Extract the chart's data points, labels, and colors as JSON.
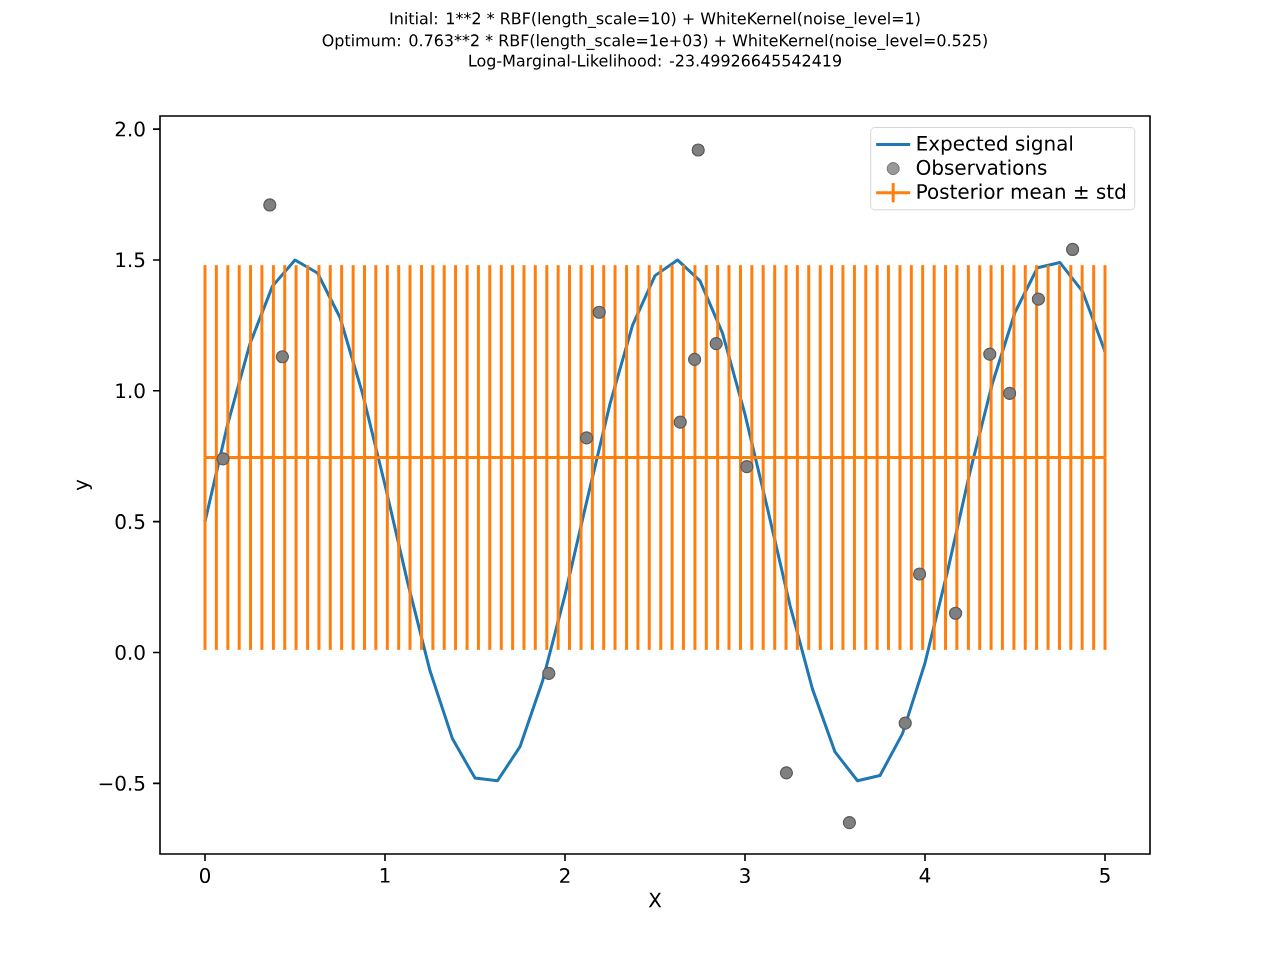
{
  "chart_data": {
    "type": "line",
    "title": "Initial: 1**2 * RBF(length_scale=10) + WhiteKernel(noise_level=1)",
    "subtitle": "Optimum: 0.763**2 * RBF(length_scale=1e+03) + WhiteKernel(noise_level=0.525)",
    "annotations": [
      "Log-Marginal-Likelihood: -23.49926645542419"
    ],
    "xlabel": "X",
    "ylabel": "y",
    "xlim": [
      -0.25,
      5.25
    ],
    "ylim": [
      -0.77,
      2.05
    ],
    "xticks": [
      0,
      1,
      2,
      3,
      4,
      5
    ],
    "yticks": [
      {
        "value": -0.5,
        "label": "−0.5"
      },
      {
        "value": 0,
        "label": "0.0"
      },
      {
        "value": 0.5,
        "label": "0.5"
      },
      {
        "value": 1,
        "label": "1.0"
      },
      {
        "value": 1.5,
        "label": "1.5"
      },
      {
        "value": 2,
        "label": "2.0"
      }
    ],
    "legend": "top right",
    "grid": false,
    "series": [
      {
        "name": "Expected signal",
        "color": "#1f77b4",
        "marker": "none",
        "line_style": "solid",
        "x": [
          0,
          0.125,
          0.25,
          0.375,
          0.5,
          0.625,
          0.75,
          0.875,
          1.0,
          1.125,
          1.25,
          1.375,
          1.5,
          1.625,
          1.75,
          1.875,
          2.0,
          2.125,
          2.25,
          2.375,
          2.5,
          2.625,
          2.75,
          2.875,
          3.0,
          3.125,
          3.25,
          3.375,
          3.5,
          3.625,
          3.75,
          3.875,
          4.0,
          4.125,
          4.25,
          4.375,
          4.5,
          4.625,
          4.75,
          4.875,
          5.0
        ],
        "values": [
          0.5,
          0.87,
          1.18,
          1.4,
          1.5,
          1.45,
          1.28,
          0.99,
          0.64,
          0.27,
          -0.07,
          -0.33,
          -0.48,
          -0.49,
          -0.36,
          -0.11,
          0.22,
          0.59,
          0.95,
          1.25,
          1.44,
          1.5,
          1.42,
          1.22,
          0.91,
          0.55,
          0.18,
          -0.14,
          -0.38,
          -0.49,
          -0.47,
          -0.31,
          -0.04,
          0.31,
          0.69,
          1.03,
          1.3,
          1.47,
          1.49,
          1.38,
          1.15
        ]
      },
      {
        "name": "Observations",
        "type": "scatter",
        "color": "#808080",
        "marker": "circle",
        "x": [
          0.1,
          0.36,
          0.43,
          1.91,
          2.12,
          2.19,
          2.64,
          2.72,
          2.74,
          2.84,
          3.01,
          3.23,
          3.58,
          3.89,
          3.97,
          4.17,
          4.36,
          4.47,
          4.63,
          4.82
        ],
        "values": [
          0.74,
          1.71,
          1.13,
          -0.08,
          0.82,
          1.3,
          0.88,
          1.12,
          1.92,
          1.18,
          0.71,
          -0.46,
          -0.65,
          -0.27,
          0.3,
          0.15,
          1.14,
          0.99,
          1.35,
          1.54
        ]
      },
      {
        "name": "Posterior mean ± std",
        "color": "#ff7f0e",
        "marker": "none",
        "line_style": "solid",
        "x": [
          0,
          0.063,
          0.127,
          0.19,
          0.253,
          0.316,
          0.38,
          0.443,
          0.506,
          0.57,
          0.633,
          0.696,
          0.759,
          0.823,
          0.886,
          0.949,
          1.013,
          1.076,
          1.139,
          1.203,
          1.266,
          1.329,
          1.392,
          1.456,
          1.519,
          1.582,
          1.646,
          1.709,
          1.772,
          1.835,
          1.899,
          1.962,
          2.025,
          2.089,
          2.152,
          2.215,
          2.278,
          2.342,
          2.405,
          2.468,
          2.532,
          2.595,
          2.658,
          2.722,
          2.785,
          2.848,
          2.911,
          2.975,
          3.038,
          3.101,
          3.165,
          3.228,
          3.291,
          3.354,
          3.418,
          3.481,
          3.544,
          3.608,
          3.671,
          3.734,
          3.797,
          3.861,
          3.924,
          3.987,
          4.051,
          4.114,
          4.177,
          4.241,
          4.304,
          4.367,
          4.43,
          4.494,
          4.557,
          4.62,
          4.684,
          4.747,
          4.81,
          4.873,
          4.937,
          5.0
        ],
        "values": [
          0.745,
          0.745,
          0.745,
          0.745,
          0.745,
          0.745,
          0.745,
          0.745,
          0.745,
          0.745,
          0.745,
          0.745,
          0.745,
          0.745,
          0.745,
          0.745,
          0.745,
          0.745,
          0.745,
          0.745,
          0.745,
          0.745,
          0.745,
          0.745,
          0.745,
          0.745,
          0.745,
          0.745,
          0.745,
          0.745,
          0.745,
          0.745,
          0.745,
          0.745,
          0.745,
          0.745,
          0.745,
          0.745,
          0.745,
          0.745,
          0.745,
          0.745,
          0.745,
          0.745,
          0.745,
          0.745,
          0.745,
          0.745,
          0.745,
          0.745,
          0.745,
          0.745,
          0.745,
          0.745,
          0.745,
          0.745,
          0.745,
          0.745,
          0.745,
          0.745,
          0.745,
          0.745,
          0.745,
          0.745,
          0.745,
          0.745,
          0.745,
          0.745,
          0.745,
          0.745,
          0.745,
          0.745,
          0.745,
          0.745,
          0.745,
          0.745,
          0.745,
          0.745,
          0.745,
          0.745
        ],
        "errors": [
          0.735,
          0.735,
          0.735,
          0.735,
          0.735,
          0.735,
          0.735,
          0.735,
          0.735,
          0.735,
          0.735,
          0.735,
          0.735,
          0.735,
          0.735,
          0.735,
          0.735,
          0.735,
          0.735,
          0.735,
          0.735,
          0.735,
          0.735,
          0.735,
          0.735,
          0.735,
          0.735,
          0.735,
          0.735,
          0.735,
          0.735,
          0.735,
          0.735,
          0.735,
          0.735,
          0.735,
          0.735,
          0.735,
          0.735,
          0.735,
          0.735,
          0.735,
          0.735,
          0.735,
          0.735,
          0.735,
          0.735,
          0.735,
          0.735,
          0.735,
          0.735,
          0.735,
          0.735,
          0.735,
          0.735,
          0.735,
          0.735,
          0.735,
          0.735,
          0.735,
          0.735,
          0.735,
          0.735,
          0.735,
          0.735,
          0.735,
          0.735,
          0.735,
          0.735,
          0.735,
          0.735,
          0.735,
          0.735,
          0.735,
          0.735,
          0.735,
          0.735,
          0.735,
          0.735,
          0.735
        ]
      }
    ]
  }
}
